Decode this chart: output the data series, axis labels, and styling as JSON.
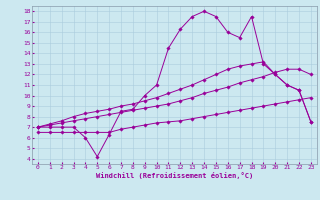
{
  "xlabel": "Windchill (Refroidissement éolien,°C)",
  "bg_color": "#cce8f0",
  "line_color": "#990099",
  "xlim": [
    -0.5,
    23.5
  ],
  "ylim": [
    3.5,
    18.5
  ],
  "xticks": [
    0,
    1,
    2,
    3,
    4,
    5,
    6,
    7,
    8,
    9,
    10,
    11,
    12,
    13,
    14,
    15,
    16,
    17,
    18,
    19,
    20,
    21,
    22,
    23
  ],
  "yticks": [
    4,
    5,
    6,
    7,
    8,
    9,
    10,
    11,
    12,
    13,
    14,
    15,
    16,
    17,
    18
  ],
  "series": [
    {
      "x": [
        0,
        1,
        2,
        3,
        4,
        5,
        6,
        7,
        8,
        9,
        10,
        11,
        12,
        13,
        14,
        15,
        16,
        17,
        18,
        19,
        20,
        21,
        22,
        23
      ],
      "y": [
        7,
        7,
        7,
        7,
        6,
        4.2,
        6.3,
        8.5,
        8.7,
        10,
        11,
        14.5,
        16.3,
        17.5,
        18,
        17.5,
        16,
        15.5,
        17.5,
        13,
        12,
        11,
        10.5,
        7.5
      ]
    },
    {
      "x": [
        0,
        1,
        2,
        3,
        4,
        5,
        6,
        7,
        8,
        9,
        10,
        11,
        12,
        13,
        14,
        15,
        16,
        17,
        18,
        19,
        20,
        21,
        22,
        23
      ],
      "y": [
        6.5,
        6.5,
        6.5,
        6.5,
        6.5,
        6.5,
        6.5,
        6.8,
        7.0,
        7.2,
        7.4,
        7.5,
        7.6,
        7.8,
        8.0,
        8.2,
        8.4,
        8.6,
        8.8,
        9.0,
        9.2,
        9.4,
        9.6,
        9.8
      ]
    },
    {
      "x": [
        0,
        1,
        2,
        3,
        4,
        5,
        6,
        7,
        8,
        9,
        10,
        11,
        12,
        13,
        14,
        15,
        16,
        17,
        18,
        19,
        20,
        21,
        22,
        23
      ],
      "y": [
        7.0,
        7.2,
        7.4,
        7.6,
        7.8,
        8.0,
        8.2,
        8.4,
        8.6,
        8.8,
        9.0,
        9.2,
        9.5,
        9.8,
        10.2,
        10.5,
        10.8,
        11.2,
        11.5,
        11.8,
        12.2,
        12.5,
        12.5,
        12.0
      ]
    },
    {
      "x": [
        0,
        1,
        2,
        3,
        4,
        5,
        6,
        7,
        8,
        9,
        10,
        11,
        12,
        13,
        14,
        15,
        16,
        17,
        18,
        19,
        20,
        21,
        22,
        23
      ],
      "y": [
        7.0,
        7.3,
        7.6,
        8.0,
        8.3,
        8.5,
        8.7,
        9.0,
        9.2,
        9.5,
        9.8,
        10.2,
        10.6,
        11.0,
        11.5,
        12.0,
        12.5,
        12.8,
        13.0,
        13.2,
        12.0,
        11.0,
        10.5,
        7.5
      ]
    }
  ]
}
